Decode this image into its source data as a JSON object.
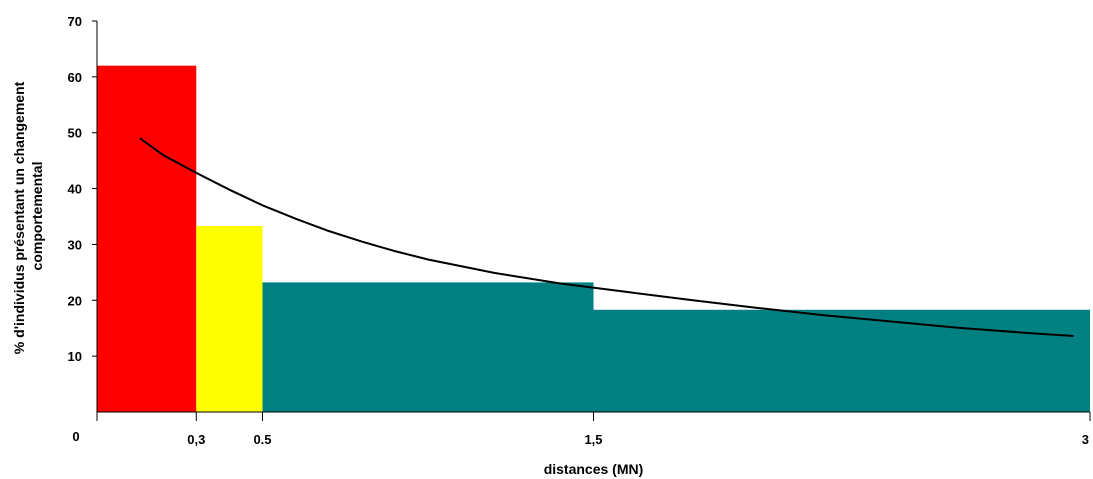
{
  "chart_data": {
    "type": "bar",
    "title": "",
    "xlabel": "distances (MN)",
    "ylabel": [
      "% d'individus présentant un changement",
      "comportemental"
    ],
    "ylim": [
      0,
      70
    ],
    "xlim": [
      0,
      3
    ],
    "y_ticks": [
      "10",
      "20",
      "30",
      "40",
      "50",
      "60",
      "70"
    ],
    "y_ticks_values": [
      10,
      20,
      30,
      40,
      50,
      60,
      70
    ],
    "x_origin_label": "0",
    "x_ticks": [
      "0,3",
      "0.5",
      "1,5",
      "3"
    ],
    "x_ticks_values": [
      0.3,
      0.5,
      1.5,
      3
    ],
    "bars": [
      {
        "x0": 0,
        "x1": 0.3,
        "value": 62,
        "color": "#ff0000"
      },
      {
        "x0": 0.3,
        "x1": 0.5,
        "value": 33.3,
        "color": "#ffff00"
      },
      {
        "x0": 0.5,
        "x1": 1.5,
        "value": 23.2,
        "color": "#008080"
      },
      {
        "x0": 1.5,
        "x1": 3,
        "value": 18.3,
        "color": "#008080"
      }
    ],
    "trend_line": {
      "color": "#000000",
      "x": [
        0.13,
        0.2,
        0.3,
        0.4,
        0.5,
        0.6,
        0.7,
        0.8,
        0.9,
        1.0,
        1.2,
        1.4,
        1.6,
        1.8,
        2.0,
        2.2,
        2.4,
        2.6,
        2.8,
        2.95
      ],
      "y": [
        49,
        46,
        42.8,
        39.8,
        37.0,
        34.6,
        32.4,
        30.5,
        28.8,
        27.3,
        24.9,
        23.0,
        21.5,
        20.0,
        18.6,
        17.3,
        16.2,
        15.1,
        14.2,
        13.6
      ]
    },
    "grid": false
  }
}
